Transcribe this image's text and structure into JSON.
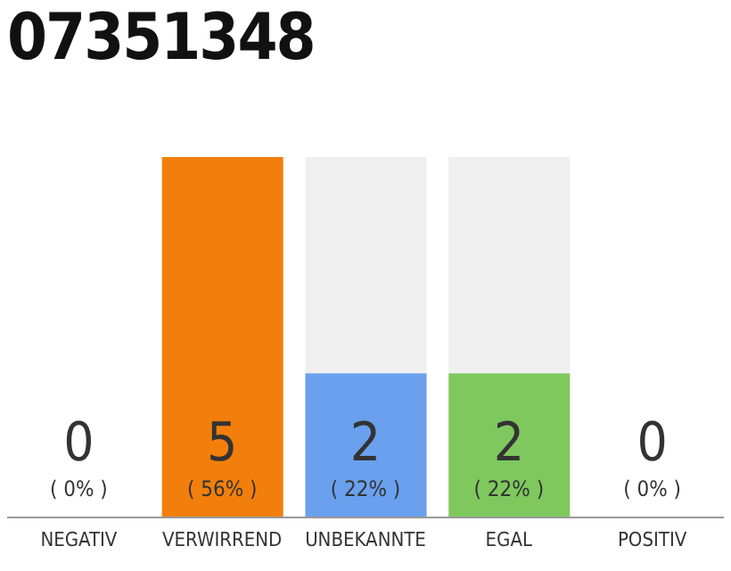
{
  "chart_data": {
    "type": "bar",
    "title": "07351348",
    "categories": [
      "NEGATIV",
      "VERWIRREND",
      "UNBEKANNTE",
      "EGAL",
      "POSITIV"
    ],
    "values": [
      0,
      5,
      2,
      2,
      0
    ],
    "colors": [
      "#bbbbbb",
      "#f27f0c",
      "#6aa0ee",
      "#7ec85e",
      "#bbbbbb"
    ],
    "data_labels": true,
    "annotations": [
      {
        "text": "( 0% )",
        "x": "NEGATIV",
        "y": 0
      },
      {
        "text": "( 56% )",
        "x": "VERWIRREND",
        "y": 0
      },
      {
        "text": "( 22% )",
        "x": "UNBEKANNTE",
        "y": 0
      },
      {
        "text": "( 22% )",
        "x": "EGAL",
        "y": 0
      },
      {
        "text": "( 0% )",
        "x": "POSITIV",
        "y": 0
      }
    ]
  }
}
